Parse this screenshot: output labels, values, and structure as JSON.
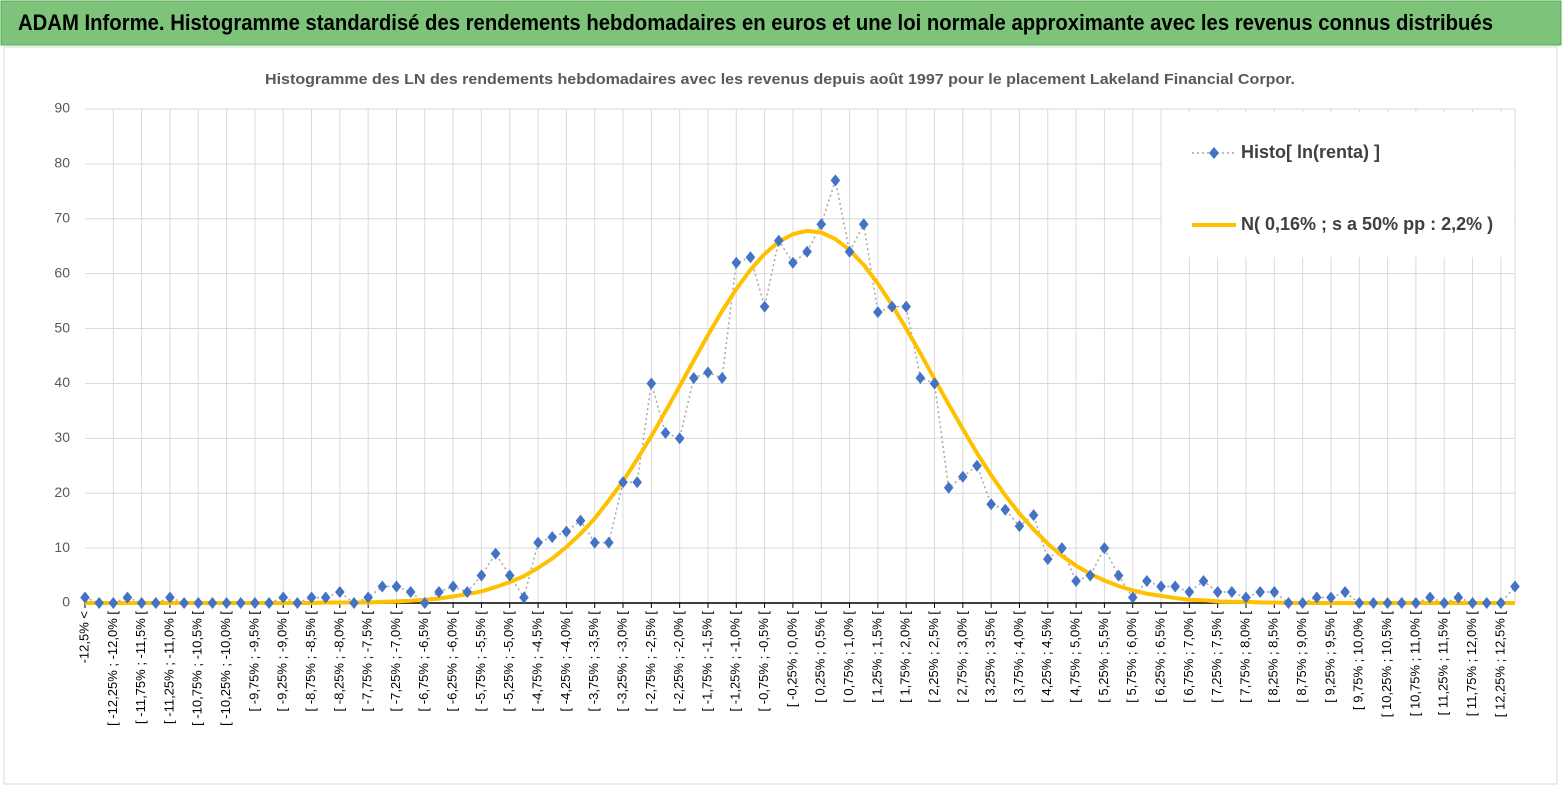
{
  "header": {
    "title": "ADAM Informe. Histogramme standardisé des rendements hebdomadaires en euros et une loi normale approximante avec les revenus connus distribués"
  },
  "chart_data": {
    "type": "line",
    "title": "Histogramme  des LN des rendements hebdomadaires avec les revenus depuis août 1997 pour le placement Lakeland Financial Corpor.",
    "categories": [
      "-12,5% <",
      null,
      "[ -12,25% ; -12,0% [",
      null,
      "[ -11,75% ; -11,5% [",
      null,
      "[ -11,25% ; -11,0% [",
      null,
      "[ -10,75% ; -10,5% [",
      null,
      "[ -10,25% ; -10,0% [",
      null,
      "[ -9,75% ; -9,5% [",
      null,
      "[ -9,25% ; -9,0% [",
      null,
      "[ -8,75% ; -8,5% [",
      null,
      "[ -8,25% ; -8,0% [",
      null,
      "[ -7,75% ; -7,5% [",
      null,
      "[ -7,25% ; -7,0% [",
      null,
      "[ -6,75% ; -6,5% [",
      null,
      "[ -6,25% ; -6,0% [",
      null,
      "[ -5,75% ; -5,5% [",
      null,
      "[ -5,25% ; -5,0% [",
      null,
      "[ -4,75% ; -4,5% [",
      null,
      "[ -4,25% ; -4,0% [",
      null,
      "[ -3,75% ; -3,5% [",
      null,
      "[ -3,25% ; -3,0% [",
      null,
      "[ -2,75% ; -2,5% [",
      null,
      "[ -2,25% ; -2,0% [",
      null,
      "[ -1,75% ; -1,5% [",
      null,
      "[ -1,25% ; -1,0% [",
      null,
      "[ -0,75% ; -0,5% [",
      null,
      "[ -0,25% ; 0,0% [",
      null,
      "[ 0,25% ; 0,5% [",
      null,
      "[ 0,75% ; 1,0% [",
      null,
      "[ 1,25% ; 1,5% [",
      null,
      "[ 1,75% ; 2,0% [",
      null,
      "[ 2,25% ; 2,5% [",
      null,
      "[ 2,75% ; 3,0% [",
      null,
      "[ 3,25% ; 3,5% [",
      null,
      "[ 3,75% ; 4,0% [",
      null,
      "[ 4,25% ; 4,5% [",
      null,
      "[ 4,75% ; 5,0% [",
      null,
      "[ 5,25% ; 5,5% [",
      null,
      "[ 5,75% ; 6,0% [",
      null,
      "[ 6,25% ; 6,5% [",
      null,
      "[ 6,75% ; 7,0% [",
      null,
      "[ 7,25% ; 7,5% [",
      null,
      "[ 7,75% ; 8,0% [",
      null,
      "[ 8,25% ; 8,5% [",
      null,
      "[ 8,75% ; 9,0% [",
      null,
      "[ 9,25% ; 9,5% [",
      null,
      "[ 9,75% ; 10,0% [",
      null,
      "[ 10,25% ; 10,5% [",
      null,
      "[ 10,75% ; 11,0% [",
      null,
      "[ 11,25% ; 11,5% [",
      null,
      "[ 11,75% ; 12,0% [",
      null,
      "[ 12,25% ; 12,5% [",
      null
    ],
    "series": [
      {
        "name": "Histo[ ln(renta) ]",
        "color": "#4472c4",
        "line_color": "#a6a6a6",
        "values": [
          1,
          0,
          0,
          1,
          0,
          0,
          1,
          0,
          0,
          0,
          0,
          0,
          0,
          0,
          1,
          0,
          1,
          1,
          2,
          0,
          1,
          3,
          3,
          2,
          0,
          2,
          3,
          2,
          5,
          9,
          5,
          1,
          11,
          12,
          13,
          15,
          11,
          11,
          22,
          22,
          40,
          31,
          30,
          41,
          42,
          41,
          62,
          63,
          54,
          66,
          62,
          64,
          69,
          77,
          64,
          69,
          53,
          54,
          54,
          41,
          40,
          21,
          23,
          25,
          18,
          17,
          14,
          16,
          8,
          10,
          4,
          5,
          10,
          5,
          1,
          4,
          3,
          3,
          2,
          4,
          2,
          2,
          1,
          2,
          2,
          0,
          0,
          1,
          1,
          2,
          0,
          0,
          0,
          0,
          0,
          1,
          0,
          1,
          0,
          0,
          0,
          3
        ]
      },
      {
        "name": "N( 0,16% ; s a 50% pp : 2,2% )",
        "color": "#ffc000",
        "values": [
          0,
          0,
          0,
          0,
          0,
          0,
          0,
          0,
          0,
          0,
          0,
          0,
          0,
          0,
          0,
          0,
          0,
          0.1,
          0.1,
          0.1,
          0.1,
          0.2,
          0.3,
          0.4,
          0.6,
          0.8,
          1.2,
          1.6,
          2.1,
          2.9,
          3.8,
          4.9,
          6.4,
          8.1,
          10.2,
          12.6,
          15.4,
          18.7,
          22.2,
          26.2,
          30.4,
          34.9,
          39.5,
          44.2,
          48.8,
          53.2,
          57.2,
          60.7,
          63.6,
          65.8,
          67.2,
          67.8,
          67.5,
          66.3,
          64.3,
          61.6,
          58.2,
          54.3,
          50.0,
          45.5,
          40.8,
          36.2,
          31.7,
          27.3,
          23.3,
          19.6,
          16.3,
          13.4,
          10.8,
          8.6,
          6.8,
          5.3,
          4.1,
          3.1,
          2.3,
          1.7,
          1.3,
          0.9,
          0.6,
          0.5,
          0.3,
          0.2,
          0.2,
          0.1,
          0.1,
          0,
          0,
          0,
          0,
          0,
          0,
          0,
          0,
          0,
          0,
          0,
          0,
          0,
          0,
          0,
          0,
          0
        ]
      }
    ],
    "ylim": [
      0,
      90
    ],
    "yticks": [
      0,
      10,
      20,
      30,
      40,
      50,
      60,
      70,
      80,
      90
    ],
    "grid": true,
    "legend": "top-right"
  }
}
